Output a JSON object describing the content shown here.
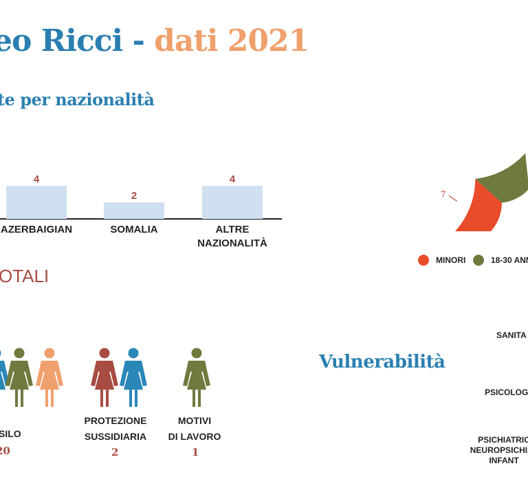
{
  "header": {
    "title_part1": "eo Ricci",
    "title_sep": " - ",
    "title_part2": "dati 2021",
    "subtitle": "te per nazionalità"
  },
  "chart_data": [
    {
      "type": "bar",
      "categories": [
        "AZERBAIGIAN",
        "SOMALIA",
        "ALTRE NAZIONALITÀ"
      ],
      "category_lines": [
        [
          "AZERBAIGIAN"
        ],
        [
          "SOMALIA"
        ],
        [
          "ALTRE",
          "NAZIONALITÀ"
        ]
      ],
      "values": [
        4,
        2,
        4
      ],
      "ylim": [
        0,
        4
      ],
      "bar_color": "#cfe0f1",
      "value_color": "#a84c43"
    },
    {
      "type": "pie",
      "slices": [
        {
          "label": "MINORI",
          "value": 7,
          "color": "#e84c2b"
        },
        {
          "label": "18-30 ANN",
          "value": null,
          "color": "#6e7a3e"
        }
      ]
    }
  ],
  "totals": {
    "section_title": "OTALI",
    "categories": [
      {
        "label_lines": [
          "SILO"
        ],
        "value": "20"
      },
      {
        "label_lines": [
          "PROTEZIONE",
          "SUSSIDIARIA"
        ],
        "value": "2"
      },
      {
        "label_lines": [
          "MOTIVI",
          "DI LAVORO"
        ],
        "value": "1"
      }
    ],
    "figure_colors": [
      "#2a87b8",
      "#6e7a3e",
      "#f0a06c",
      "#a84c43",
      "#2a87b8",
      "#6e7a3e"
    ]
  },
  "vulnerability": {
    "title": "Vulnerabilità",
    "items": [
      {
        "lines": [
          "SANITA"
        ]
      },
      {
        "lines": [
          "PSICOLOGI"
        ]
      },
      {
        "lines": [
          "PSICHIATRIC",
          "NEUROPSICHIAT",
          "INFANT"
        ]
      }
    ]
  }
}
